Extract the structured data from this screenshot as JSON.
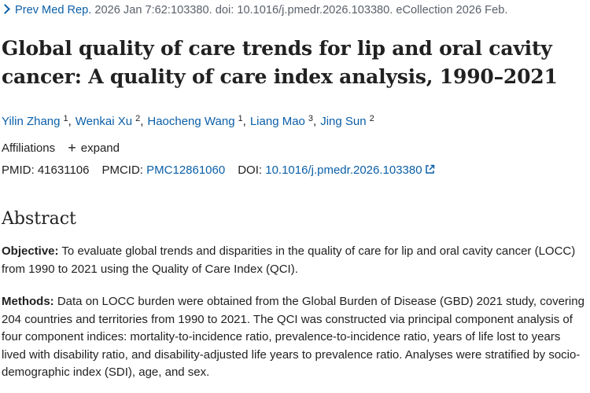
{
  "citation": {
    "journal": "Prev Med Rep.",
    "details": " 2026 Jan 7:62:103380. doi: 10.1016/j.pmedr.2026.103380. eCollection 2026 Feb."
  },
  "title": "Global quality of care trends for lip and oral cavity cancer: A quality of care index analysis, 1990–2021",
  "authors": [
    {
      "name": "Yilin Zhang",
      "aff": "1"
    },
    {
      "name": "Wenkai Xu",
      "aff": "2"
    },
    {
      "name": "Haocheng Wang",
      "aff": "1"
    },
    {
      "name": "Liang Mao",
      "aff": "3"
    },
    {
      "name": "Jing Sun",
      "aff": "2"
    }
  ],
  "affiliations": {
    "label": "Affiliations",
    "expand_label": "expand"
  },
  "ids": {
    "pmid_label": "PMID:",
    "pmid": "41631106",
    "pmcid_label": "PMCID:",
    "pmcid": "PMC12861060",
    "doi_label": "DOI:",
    "doi": "10.1016/j.pmedr.2026.103380"
  },
  "abstract": {
    "heading": "Abstract",
    "objective_label": "Objective:",
    "objective_text": " To evaluate global trends and disparities in the quality of care for lip and oral cavity cancer (LOCC) from 1990 to 2021 using the Quality of Care Index (QCI).",
    "methods_label": "Methods:",
    "methods_text": " Data on LOCC burden were obtained from the Global Burden of Disease (GBD) 2021 study, covering 204 countries and territories from 1990 to 2021. The QCI was constructed via principal component analysis of four component indices: mortality-to-incidence ratio, prevalence-to-incidence ratio, years of life lost to years lived with disability ratio, and disability-adjusted life years to prevalence ratio. Analyses were stratified by socio-demographic index (SDI), age, and sex."
  },
  "colors": {
    "link": "#0b5fa8",
    "text": "#212121",
    "muted": "#5b616b"
  }
}
